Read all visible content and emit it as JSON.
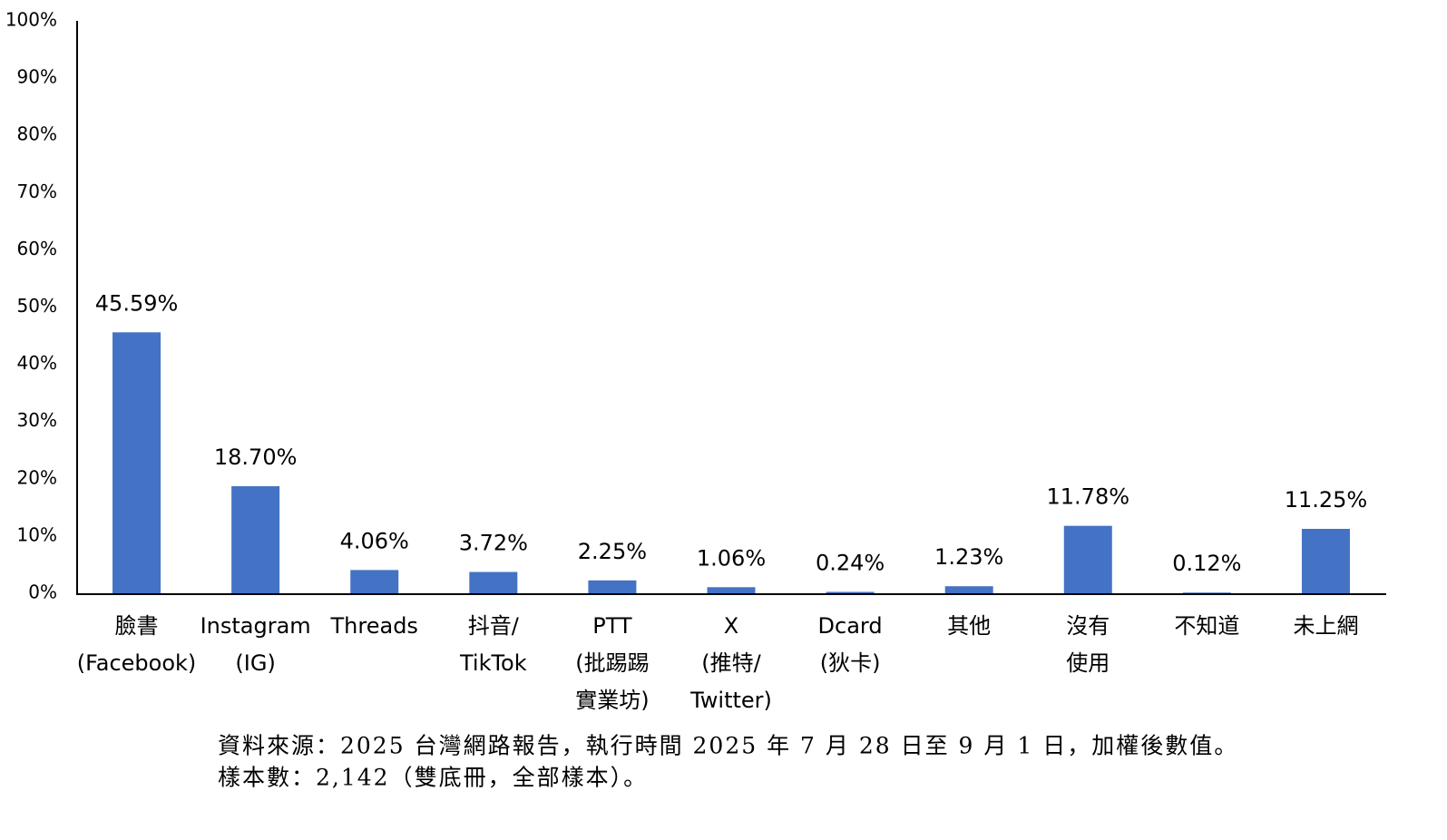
{
  "chart_data": {
    "type": "bar",
    "categories": [
      [
        "臉書",
        "(Facebook)"
      ],
      [
        "Instagram",
        "(IG)"
      ],
      [
        "Threads"
      ],
      [
        "抖音/",
        "TikTok"
      ],
      [
        "PTT",
        "(批踢踢",
        "實業坊)"
      ],
      [
        "X",
        "(推特/",
        "Twitter)"
      ],
      [
        "Dcard",
        "(狄卡)"
      ],
      [
        "其他"
      ],
      [
        "沒有",
        "使用"
      ],
      [
        "不知道"
      ],
      [
        "未上網"
      ]
    ],
    "values": [
      45.59,
      18.7,
      4.06,
      3.72,
      2.25,
      1.06,
      0.24,
      1.23,
      11.78,
      0.12,
      11.25
    ],
    "value_labels": [
      "45.59%",
      "18.70%",
      "4.06%",
      "3.72%",
      "2.25%",
      "1.06%",
      "0.24%",
      "1.23%",
      "11.78%",
      "0.12%",
      "11.25%"
    ],
    "color": "#4472c4",
    "ylim": [
      0,
      100
    ],
    "yticks": [
      {
        "value": 0,
        "label": "0%"
      },
      {
        "value": 10,
        "label": "10%"
      },
      {
        "value": 20,
        "label": "20%"
      },
      {
        "value": 30,
        "label": "30%"
      },
      {
        "value": 40,
        "label": "40%"
      },
      {
        "value": 50,
        "label": "50%"
      },
      {
        "value": 60,
        "label": "60%"
      },
      {
        "value": 70,
        "label": "70%"
      },
      {
        "value": 80,
        "label": "80%"
      },
      {
        "value": 90,
        "label": "90%"
      },
      {
        "value": 100,
        "label": "100%"
      }
    ],
    "grid": false,
    "notes": [
      "資料來源：2025 台灣網路報告，執行時間 2025 年 7 月 28 日至 9 月 1 日，加權後數值。",
      "樣本數：2,142（雙底冊，全部樣本）。"
    ]
  }
}
